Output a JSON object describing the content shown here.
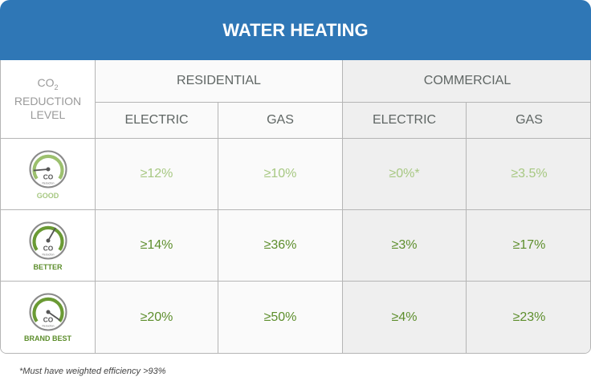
{
  "title": "WATER HEATING",
  "corner": {
    "co": "CO",
    "sub": "2",
    "line2": "REDUCTION",
    "line3": "LEVEL"
  },
  "groups": [
    "RESIDENTIAL",
    "COMMERCIAL"
  ],
  "columns": [
    "ELECTRIC",
    "GAS",
    "ELECTRIC",
    "GAS"
  ],
  "rows": [
    {
      "level": "GOOD",
      "values": [
        "≥12%",
        "≥10%",
        "≥0%*",
        "≥3.5%"
      ]
    },
    {
      "level": "BETTER",
      "values": [
        "≥14%",
        "≥36%",
        "≥3%",
        "≥17%"
      ]
    },
    {
      "level": "BRAND BEST",
      "values": [
        "≥20%",
        "≥50%",
        "≥4%",
        "≥23%"
      ]
    }
  ],
  "gauge_text": {
    "co": "CO",
    "sub": "2",
    "caption": "Reduction"
  },
  "footnote": "*Must have weighted efficiency >93%",
  "colors": {
    "header": "#2f77b6",
    "good": "#a7c882",
    "strong": "#5d8e2c"
  }
}
